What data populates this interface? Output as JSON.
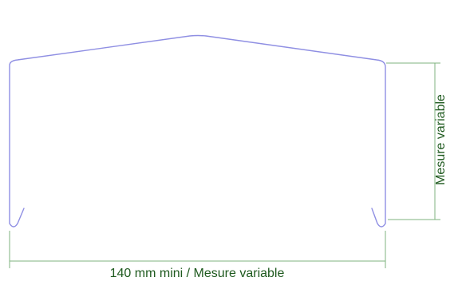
{
  "labels": {
    "width_dimension": "140 mm mini / Mesure variable",
    "height_dimension": "Mesure variable"
  },
  "colors": {
    "profile_stroke": "#8f8fe3",
    "dimension_stroke": "#7fb37f",
    "dimension_text": "#1f5a1f",
    "background": "#ffffff"
  }
}
